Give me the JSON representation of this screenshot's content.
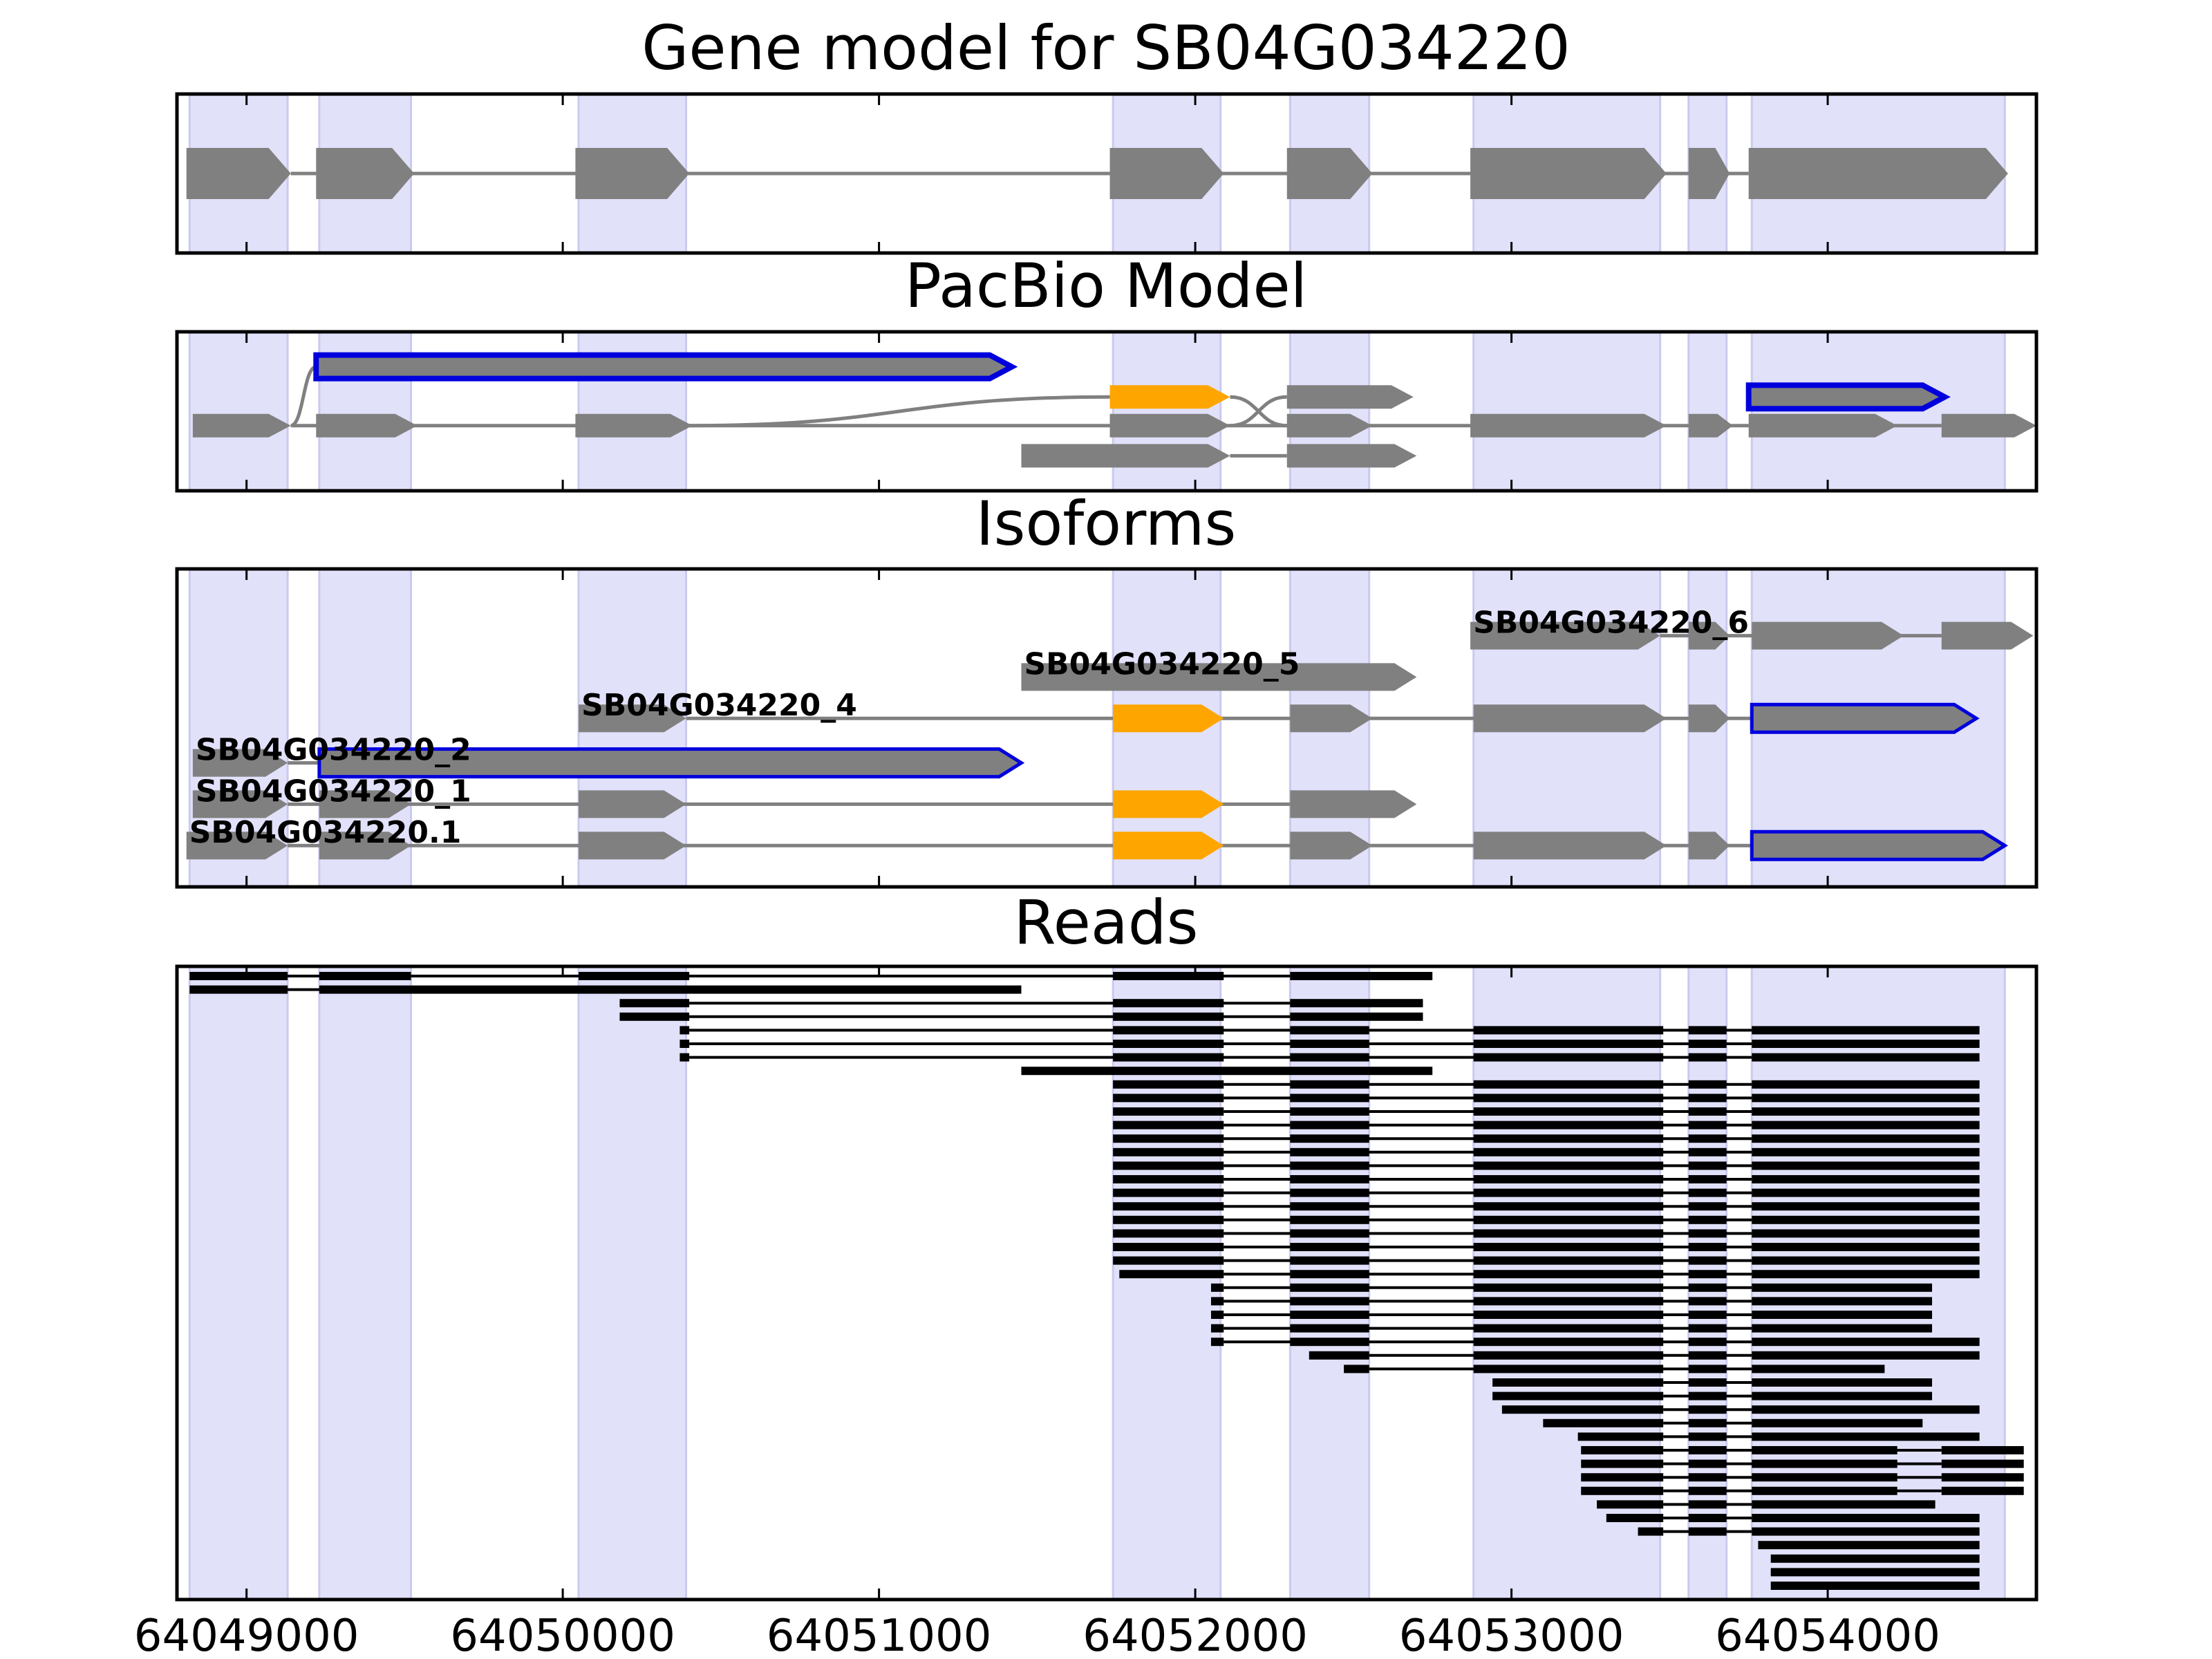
{
  "colors": {
    "band": "#e1e1fa",
    "band_edge": "#cacaee",
    "exon": "#808080",
    "highlight": "#ffa500",
    "outline": "#0000dd",
    "read": "#000000",
    "intron": "#808080"
  },
  "axis": {
    "min": 64048780,
    "max": 64054660,
    "ticks": [
      64049000,
      64050000,
      64051000,
      64052000,
      64053000,
      64054000
    ],
    "tick_labels": [
      "64049000",
      "64050000",
      "64051000",
      "64052000",
      "64053000",
      "64054000"
    ]
  },
  "bands": [
    [
      64048820,
      64049130
    ],
    [
      64049230,
      64049520
    ],
    [
      64050050,
      64050390
    ],
    [
      64051740,
      64052080
    ],
    [
      64052300,
      64052550
    ],
    [
      64052880,
      64053470
    ],
    [
      64053560,
      64053680
    ],
    [
      64053760,
      64054560
    ]
  ],
  "panels": [
    {
      "key": "gene_model",
      "title": "Gene model for SB04G034220",
      "tracks": [
        {
          "row": 0.5,
          "exons": [
            [
              64048810,
              64049140
            ],
            [
              64049220,
              64049530
            ],
            [
              64050040,
              64050400
            ],
            [
              64051730,
              64052090
            ],
            [
              64052290,
              64052560
            ],
            [
              64052870,
              64053490
            ],
            [
              64053560,
              64053690
            ],
            [
              64053750,
              64054570
            ]
          ]
        }
      ]
    },
    {
      "key": "pacbio_model",
      "title": "PacBio Model",
      "tracks": [
        {
          "row": 0.22,
          "exons": [
            [
              64049220,
              64051420
            ]
          ],
          "style": "outline",
          "connect_from": [
            64049140,
            0.59
          ]
        },
        {
          "row": 0.41,
          "exons": [
            [
              64051730,
              64052110
            ]
          ],
          "style": "highlight",
          "connect_from": [
            64050400,
            0.59
          ],
          "connect_to": [
            64052290,
            0.59
          ]
        },
        {
          "row": 0.41,
          "exons": [
            [
              64052290,
              64052690
            ]
          ],
          "connect_from": [
            64052110,
            0.59
          ]
        },
        {
          "row": 0.41,
          "exons": [
            [
              64053750,
              64054370
            ]
          ],
          "style": "outline"
        },
        {
          "row": 0.59,
          "exons": [
            [
              64048830,
              64049140
            ],
            [
              64049220,
              64049540
            ],
            [
              64050040,
              64050410
            ],
            [
              64051730,
              64052110
            ],
            [
              64052290,
              64052560
            ],
            [
              64052870,
              64053490
            ],
            [
              64053560,
              64053700
            ],
            [
              64053750,
              64054220
            ],
            [
              64054360,
              64054660
            ]
          ]
        },
        {
          "row": 0.78,
          "exons": [
            [
              64051450,
              64052110
            ],
            [
              64052290,
              64052700
            ]
          ]
        }
      ]
    },
    {
      "key": "isoforms",
      "title": "Isoforms",
      "tracks": [
        {
          "row": 0.21,
          "label": "SB04G034220_6",
          "exons": [
            [
              64052870,
              64053470
            ],
            [
              64053560,
              64053690
            ],
            [
              64053760,
              64054240
            ],
            [
              64054360,
              64054650
            ]
          ]
        },
        {
          "row": 0.34,
          "label": "SB04G034220_5",
          "exons": [
            [
              64051450,
              64052700
            ]
          ]
        },
        {
          "row": 0.47,
          "label": "SB04G034220_4",
          "exons": [
            [
              64050050,
              64050390
            ],
            [
              64051740,
              64052090
            ],
            [
              64052300,
              64052560
            ],
            [
              64052880,
              64053490
            ],
            [
              64053560,
              64053690
            ],
            [
              64053760,
              64054470
            ]
          ],
          "highlight": [
            1
          ],
          "outline": [
            5
          ]
        },
        {
          "row": 0.61,
          "label": "SB04G034220_2",
          "exons": [
            [
              64048830,
              64049130
            ],
            [
              64049230,
              64051450
            ]
          ],
          "outline": [
            1
          ]
        },
        {
          "row": 0.74,
          "label": "SB04G034220_1",
          "exons": [
            [
              64048830,
              64049130
            ],
            [
              64049230,
              64049520
            ],
            [
              64050050,
              64050390
            ],
            [
              64051740,
              64052090
            ],
            [
              64052300,
              64052700
            ]
          ],
          "highlight": [
            3
          ]
        },
        {
          "row": 0.87,
          "label": "SB04G034220.1",
          "exons": [
            [
              64048810,
              64049130
            ],
            [
              64049230,
              64049520
            ],
            [
              64050050,
              64050390
            ],
            [
              64051740,
              64052090
            ],
            [
              64052300,
              64052560
            ],
            [
              64052880,
              64053490
            ],
            [
              64053560,
              64053690
            ],
            [
              64053760,
              64054560
            ]
          ],
          "highlight": [
            3
          ],
          "outline": [
            7
          ]
        }
      ]
    },
    {
      "key": "reads",
      "title": "Reads"
    }
  ],
  "reads": [
    [
      [
        64048820,
        64049130
      ],
      [
        64049230,
        64049520
      ],
      [
        64050050,
        64050400
      ],
      [
        64051740,
        64052090
      ],
      [
        64052300,
        64052750
      ]
    ],
    [
      [
        64048820,
        64049130
      ],
      [
        64049230,
        64051450
      ]
    ],
    [
      [
        64050180,
        64050400
      ],
      [
        64051740,
        64052090
      ],
      [
        64052300,
        64052720
      ]
    ],
    [
      [
        64050180,
        64050400
      ],
      [
        64051740,
        64052090
      ],
      [
        64052300,
        64052720
      ]
    ],
    [
      [
        64050370,
        64050400
      ],
      [
        64051740,
        64052090
      ],
      [
        64052300,
        64052550
      ],
      [
        64052880,
        64053480
      ],
      [
        64053560,
        64053680
      ],
      [
        64053760,
        64054480
      ]
    ],
    [
      [
        64050370,
        64050400
      ],
      [
        64051740,
        64052090
      ],
      [
        64052300,
        64052550
      ],
      [
        64052880,
        64053480
      ],
      [
        64053560,
        64053680
      ],
      [
        64053760,
        64054480
      ]
    ],
    [
      [
        64050370,
        64050400
      ],
      [
        64051740,
        64052090
      ],
      [
        64052300,
        64052550
      ],
      [
        64052880,
        64053480
      ],
      [
        64053560,
        64053680
      ],
      [
        64053760,
        64054480
      ]
    ],
    [
      [
        64051450,
        64052750
      ]
    ],
    [
      [
        64051740,
        64052090
      ],
      [
        64052300,
        64052550
      ],
      [
        64052880,
        64053480
      ],
      [
        64053560,
        64053680
      ],
      [
        64053760,
        64054480
      ]
    ],
    [
      [
        64051740,
        64052090
      ],
      [
        64052300,
        64052550
      ],
      [
        64052880,
        64053480
      ],
      [
        64053560,
        64053680
      ],
      [
        64053760,
        64054480
      ]
    ],
    [
      [
        64051740,
        64052090
      ],
      [
        64052300,
        64052550
      ],
      [
        64052880,
        64053480
      ],
      [
        64053560,
        64053680
      ],
      [
        64053760,
        64054480
      ]
    ],
    [
      [
        64051740,
        64052090
      ],
      [
        64052300,
        64052550
      ],
      [
        64052880,
        64053480
      ],
      [
        64053560,
        64053680
      ],
      [
        64053760,
        64054480
      ]
    ],
    [
      [
        64051740,
        64052090
      ],
      [
        64052300,
        64052550
      ],
      [
        64052880,
        64053480
      ],
      [
        64053560,
        64053680
      ],
      [
        64053760,
        64054480
      ]
    ],
    [
      [
        64051740,
        64052090
      ],
      [
        64052300,
        64052550
      ],
      [
        64052880,
        64053480
      ],
      [
        64053560,
        64053680
      ],
      [
        64053760,
        64054480
      ]
    ],
    [
      [
        64051740,
        64052090
      ],
      [
        64052300,
        64052550
      ],
      [
        64052880,
        64053480
      ],
      [
        64053560,
        64053680
      ],
      [
        64053760,
        64054480
      ]
    ],
    [
      [
        64051740,
        64052090
      ],
      [
        64052300,
        64052550
      ],
      [
        64052880,
        64053480
      ],
      [
        64053560,
        64053680
      ],
      [
        64053760,
        64054480
      ]
    ],
    [
      [
        64051740,
        64052090
      ],
      [
        64052300,
        64052550
      ],
      [
        64052880,
        64053480
      ],
      [
        64053560,
        64053680
      ],
      [
        64053760,
        64054480
      ]
    ],
    [
      [
        64051740,
        64052090
      ],
      [
        64052300,
        64052550
      ],
      [
        64052880,
        64053480
      ],
      [
        64053560,
        64053680
      ],
      [
        64053760,
        64054480
      ]
    ],
    [
      [
        64051740,
        64052090
      ],
      [
        64052300,
        64052550
      ],
      [
        64052880,
        64053480
      ],
      [
        64053560,
        64053680
      ],
      [
        64053760,
        64054480
      ]
    ],
    [
      [
        64051740,
        64052090
      ],
      [
        64052300,
        64052550
      ],
      [
        64052880,
        64053480
      ],
      [
        64053560,
        64053680
      ],
      [
        64053760,
        64054480
      ]
    ],
    [
      [
        64051740,
        64052090
      ],
      [
        64052300,
        64052550
      ],
      [
        64052880,
        64053480
      ],
      [
        64053560,
        64053680
      ],
      [
        64053760,
        64054480
      ]
    ],
    [
      [
        64051740,
        64052090
      ],
      [
        64052300,
        64052550
      ],
      [
        64052880,
        64053480
      ],
      [
        64053560,
        64053680
      ],
      [
        64053760,
        64054480
      ]
    ],
    [
      [
        64051760,
        64052090
      ],
      [
        64052300,
        64052550
      ],
      [
        64052880,
        64053480
      ],
      [
        64053560,
        64053680
      ],
      [
        64053760,
        64054480
      ]
    ],
    [
      [
        64052050,
        64052090
      ],
      [
        64052300,
        64052550
      ],
      [
        64052880,
        64053480
      ],
      [
        64053560,
        64053680
      ],
      [
        64053760,
        64054330
      ]
    ],
    [
      [
        64052050,
        64052090
      ],
      [
        64052300,
        64052550
      ],
      [
        64052880,
        64053480
      ],
      [
        64053560,
        64053680
      ],
      [
        64053760,
        64054330
      ]
    ],
    [
      [
        64052050,
        64052090
      ],
      [
        64052300,
        64052550
      ],
      [
        64052880,
        64053480
      ],
      [
        64053560,
        64053680
      ],
      [
        64053760,
        64054330
      ]
    ],
    [
      [
        64052050,
        64052090
      ],
      [
        64052300,
        64052550
      ],
      [
        64052880,
        64053480
      ],
      [
        64053560,
        64053680
      ],
      [
        64053760,
        64054330
      ]
    ],
    [
      [
        64052050,
        64052090
      ],
      [
        64052300,
        64052550
      ],
      [
        64052880,
        64053480
      ],
      [
        64053560,
        64053680
      ],
      [
        64053760,
        64054480
      ]
    ],
    [
      [
        64052360,
        64052550
      ],
      [
        64052880,
        64053480
      ],
      [
        64053560,
        64053680
      ],
      [
        64053760,
        64054480
      ]
    ],
    [
      [
        64052470,
        64052550
      ],
      [
        64052880,
        64053480
      ],
      [
        64053560,
        64053680
      ],
      [
        64053760,
        64054180
      ]
    ],
    [
      [
        64052940,
        64053480
      ],
      [
        64053560,
        64053680
      ],
      [
        64053760,
        64054330
      ]
    ],
    [
      [
        64052940,
        64053480
      ],
      [
        64053560,
        64053680
      ],
      [
        64053760,
        64054330
      ]
    ],
    [
      [
        64052970,
        64053480
      ],
      [
        64053560,
        64053680
      ],
      [
        64053760,
        64054480
      ]
    ],
    [
      [
        64053100,
        64053480
      ],
      [
        64053560,
        64053680
      ],
      [
        64053760,
        64054300
      ]
    ],
    [
      [
        64053210,
        64053480
      ],
      [
        64053560,
        64053680
      ],
      [
        64053760,
        64054480
      ]
    ],
    [
      [
        64053220,
        64053480
      ],
      [
        64053560,
        64053680
      ],
      [
        64053760,
        64054220
      ],
      [
        64054360,
        64054620
      ]
    ],
    [
      [
        64053220,
        64053480
      ],
      [
        64053560,
        64053680
      ],
      [
        64053760,
        64054220
      ],
      [
        64054360,
        64054620
      ]
    ],
    [
      [
        64053220,
        64053480
      ],
      [
        64053560,
        64053680
      ],
      [
        64053760,
        64054220
      ],
      [
        64054360,
        64054620
      ]
    ],
    [
      [
        64053220,
        64053480
      ],
      [
        64053560,
        64053680
      ],
      [
        64053760,
        64054220
      ],
      [
        64054360,
        64054620
      ]
    ],
    [
      [
        64053270,
        64053480
      ],
      [
        64053560,
        64053680
      ],
      [
        64053760,
        64054340
      ]
    ],
    [
      [
        64053300,
        64053480
      ],
      [
        64053560,
        64053680
      ],
      [
        64053760,
        64054480
      ]
    ],
    [
      [
        64053400,
        64053480
      ],
      [
        64053560,
        64053680
      ],
      [
        64053760,
        64054480
      ]
    ],
    [
      [
        64053780,
        64054480
      ]
    ],
    [
      [
        64053820,
        64054480
      ]
    ],
    [
      [
        64053820,
        64054480
      ]
    ],
    [
      [
        64053820,
        64054480
      ]
    ]
  ]
}
